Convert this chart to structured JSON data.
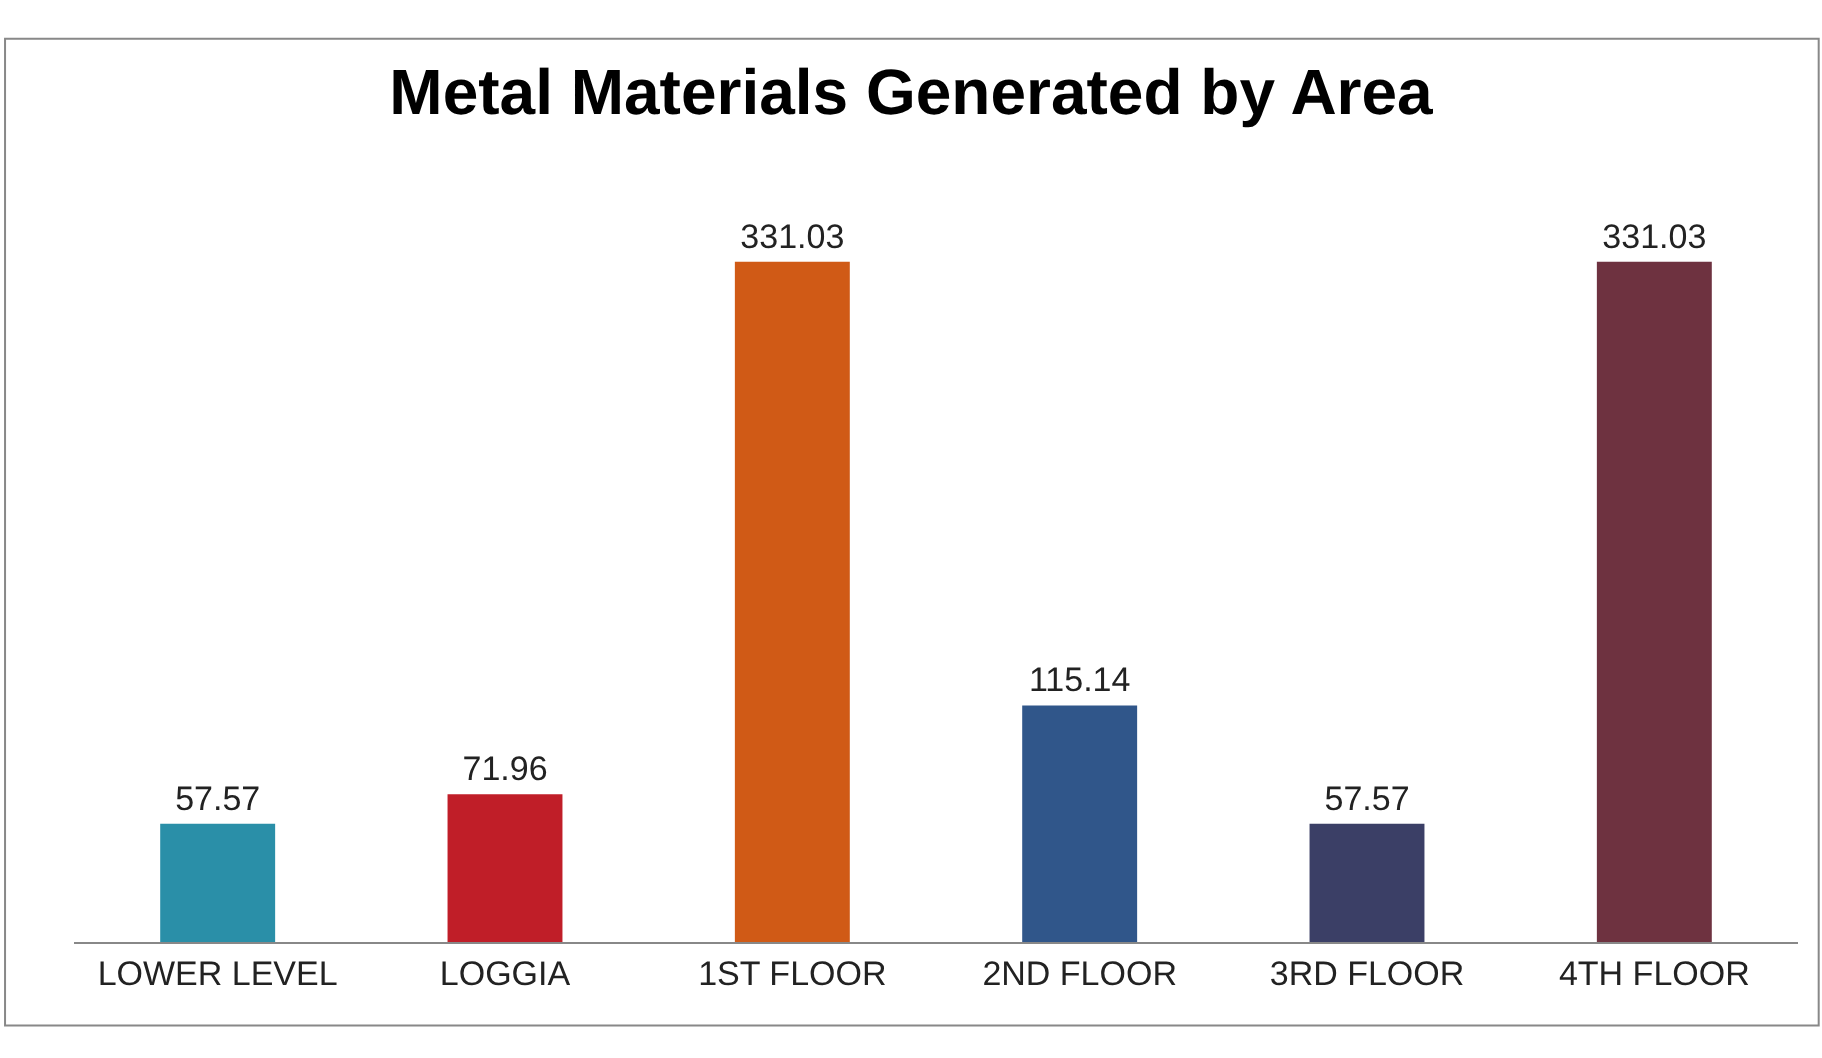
{
  "chart_data": {
    "type": "bar",
    "title": "Metal Materials Generated by Area",
    "categories": [
      "LOWER LEVEL",
      "LOGGIA",
      "1ST FLOOR",
      "2ND FLOOR",
      "3RD FLOOR",
      "4TH FLOOR"
    ],
    "values": [
      57.57,
      71.96,
      331.03,
      115.14,
      57.57,
      331.03
    ],
    "colors": [
      "#2a8fa8",
      "#c01e28",
      "#d05a16",
      "#30568a",
      "#3b3f66",
      "#6e3240"
    ],
    "data_labels": true
  }
}
